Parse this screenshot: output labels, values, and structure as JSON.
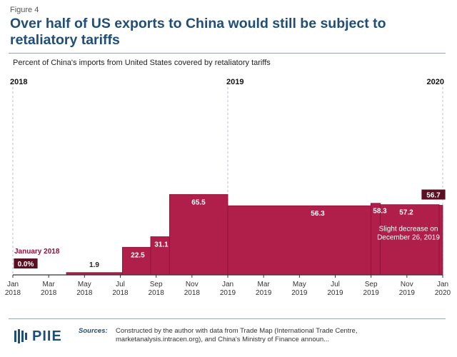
{
  "figure_label": "Figure 4",
  "title": "Over half of US exports to China would still be subject to retaliatory tariffs",
  "logo_text": "PIIE",
  "sources": {
    "label": "Sources:",
    "line1": "Constructed by the author with data from Trade Map (International Trade Centre,",
    "line2": "marketanalysis.intracen.org), and China's Ministry of Finance announ..."
  },
  "colors": {
    "bar": "#b01e4a",
    "bar_edge": "#8e1138",
    "label_box": "#5a0f22",
    "title": "#1f4e79"
  },
  "chart_data": {
    "type": "area",
    "title": "Over half of US exports to China would still be subject to retaliatory tariffs",
    "subtitle": "Percent of China's imports from United States covered by retaliatory tariffs",
    "xlabel": "",
    "ylabel": "",
    "ylim": [
      0,
      80
    ],
    "grid": false,
    "year_markers": [
      "2018",
      "2019",
      "2020"
    ],
    "x_ticks": [
      "Jan\n2018",
      "Mar\n2018",
      "May\n2018",
      "Jul\n2018",
      "Sep\n2018",
      "Nov\n2018",
      "Jan\n2019",
      "Mar\n2019",
      "May\n2019",
      "Jul\n2019",
      "Sep\n2019",
      "Nov\n2019",
      "Jan\n2020"
    ],
    "series": [
      {
        "steps": [
          {
            "x": "2018-01-01",
            "value": 0.0
          },
          {
            "x": "2018-04-02",
            "value": 1.9
          },
          {
            "x": "2018-07-06",
            "value": 22.5
          },
          {
            "x": "2018-08-23",
            "value": 31.1
          },
          {
            "x": "2018-09-24",
            "value": 65.5
          },
          {
            "x": "2019-01-01",
            "value": 56.3
          },
          {
            "x": "2019-09-01",
            "value": 58.3
          },
          {
            "x": "2019-09-17",
            "value": 57.2
          },
          {
            "x": "2019-12-26",
            "value": 56.7
          },
          {
            "x": "2020-01-01",
            "value": 56.7
          }
        ]
      }
    ],
    "data_labels": [
      {
        "text": "0.0%",
        "value": 0.0
      },
      {
        "text": "1.9",
        "value": 1.9
      },
      {
        "text": "22.5",
        "value": 22.5
      },
      {
        "text": "31.1",
        "value": 31.1
      },
      {
        "text": "65.5",
        "value": 65.5
      },
      {
        "text": "56.3",
        "value": 56.3
      },
      {
        "text": "58.3",
        "value": 58.3
      },
      {
        "text": "57.2",
        "value": 57.2
      },
      {
        "text": "56.7",
        "value": 56.7
      }
    ],
    "annotations": [
      {
        "text": "January 2018"
      },
      {
        "text": "Slight decrease on"
      },
      {
        "text": "December 26, 2019"
      }
    ]
  }
}
